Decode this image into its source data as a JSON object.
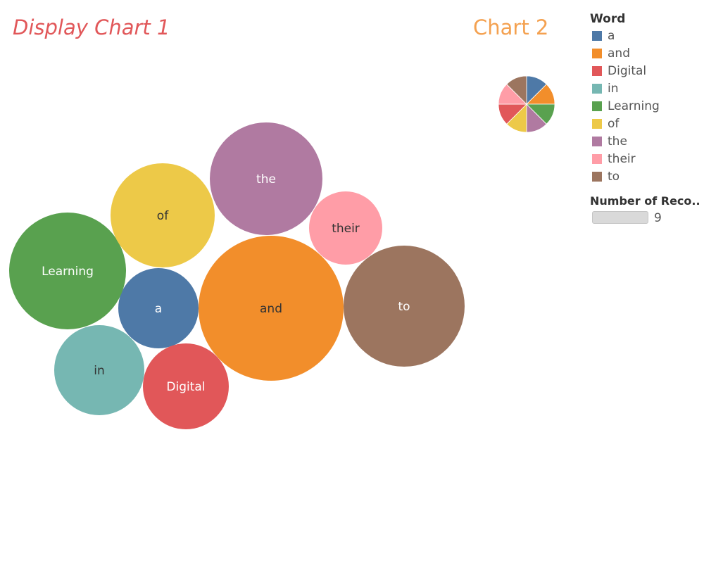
{
  "header": {
    "chart1_title": "Display Chart 1",
    "chart2_title": "Chart 2",
    "chart1_title_color": "#e15759",
    "chart2_title_color": "#f4a150"
  },
  "legend": {
    "title": "Word",
    "items": [
      {
        "label": "a",
        "color": "#4e79a7"
      },
      {
        "label": "and",
        "color": "#f28e2b"
      },
      {
        "label": "Digital",
        "color": "#e15759"
      },
      {
        "label": "in",
        "color": "#76b7b2"
      },
      {
        "label": "Learning",
        "color": "#59a14f"
      },
      {
        "label": "of",
        "color": "#edc948"
      },
      {
        "label": "the",
        "color": "#b07aa1"
      },
      {
        "label": "their",
        "color": "#ff9da7"
      },
      {
        "label": "to",
        "color": "#9c755f"
      }
    ],
    "size_title": "Number of Reco..",
    "size_value": "9"
  },
  "chart_data": [
    {
      "type": "bubble",
      "title": "Display Chart 1",
      "categories": [
        "a",
        "and",
        "Digital",
        "in",
        "Learning",
        "of",
        "the",
        "their",
        "to"
      ],
      "values": [
        4,
        13,
        5,
        5,
        9,
        7,
        8,
        4,
        9
      ],
      "label_colors": [
        "#ffffff",
        "#333333",
        "#ffffff",
        "#333333",
        "#ffffff",
        "#333333",
        "#ffffff",
        "#333333",
        "#ffffff"
      ]
    },
    {
      "type": "pie",
      "title": "Chart 2",
      "categories": [
        "a",
        "and",
        "Learning",
        "the",
        "of",
        "Digital",
        "their",
        "to"
      ],
      "values": [
        1,
        1,
        1,
        1,
        1,
        1,
        1,
        1
      ]
    }
  ]
}
